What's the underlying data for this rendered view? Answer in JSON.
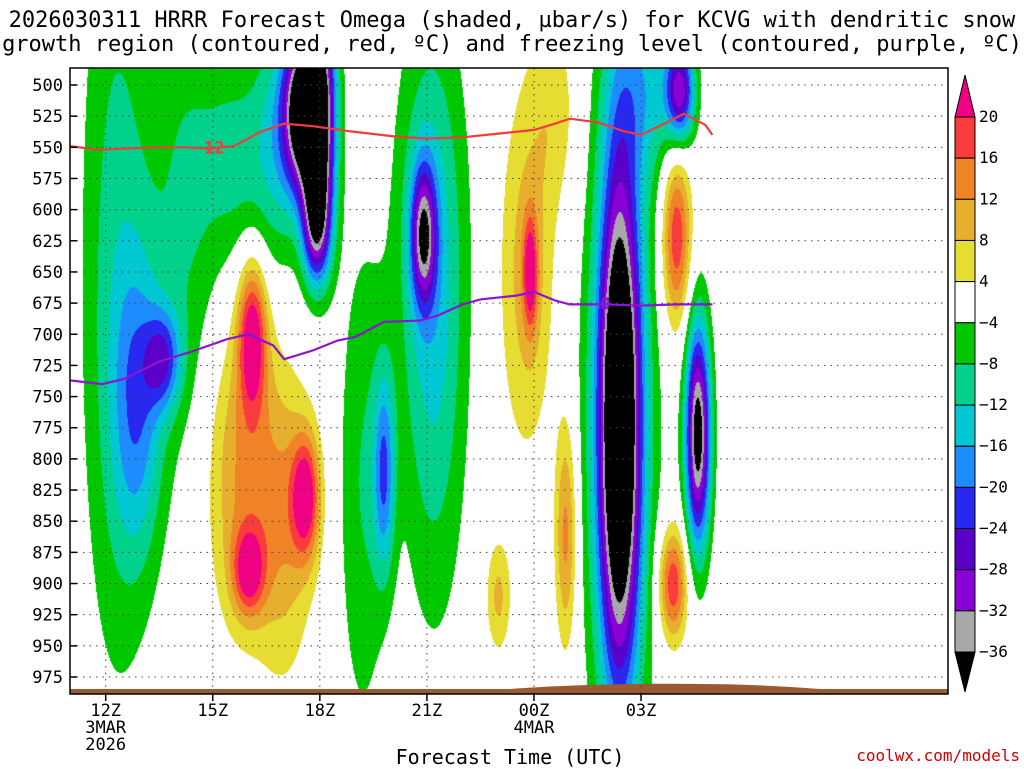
{
  "chart_data": {
    "type": "heatmap",
    "title_line1": "2026030311 HRRR Forecast Omega (shaded, µbar/s) for KCVG with dendritic snow",
    "title_line2": "growth region (contoured, red, ºC) and freezing level (contoured, purple, ºC)",
    "xlabel": "Forecast Time (UTC)",
    "credit": "coolwx.com/models",
    "xlim": [
      11,
      35.6
    ],
    "ylim": [
      990,
      490
    ],
    "yticks": [
      500,
      525,
      550,
      575,
      600,
      625,
      650,
      675,
      700,
      725,
      750,
      775,
      800,
      825,
      850,
      875,
      900,
      925,
      950,
      975
    ],
    "xticks": [
      {
        "t": 12,
        "lines": [
          "12Z",
          "3MAR",
          "2026"
        ]
      },
      {
        "t": 15,
        "lines": [
          "15Z"
        ]
      },
      {
        "t": 18,
        "lines": [
          "18Z"
        ]
      },
      {
        "t": 21,
        "lines": [
          "21Z"
        ]
      },
      {
        "t": 24,
        "lines": [
          "00Z",
          "4MAR"
        ]
      },
      {
        "t": 27,
        "lines": [
          "03Z"
        ]
      }
    ],
    "colorbar": {
      "levels": [
        -36,
        -32,
        -28,
        -24,
        -20,
        -16,
        -12,
        -8,
        -4,
        4,
        8,
        12,
        16,
        20
      ],
      "labels": [
        "20",
        "16",
        "12",
        "8",
        "4",
        "−4",
        "−8",
        "−12",
        "−16",
        "−20",
        "−24",
        "−28",
        "−32",
        "−36"
      ],
      "colors": [
        "#000000",
        "#a8a8a8",
        "#8c00d8",
        "#5a00c8",
        "#2828f0",
        "#1e8cff",
        "#00c8d2",
        "#00d28c",
        "#00c800",
        "#ffffff",
        "#e6dc32",
        "#e6af2d",
        "#f08228",
        "#fa3c3c",
        "#f00082"
      ]
    },
    "omega_cells": [
      {
        "t": 12.3,
        "p": 650,
        "v": -10,
        "sx": 1.0,
        "sy": 320
      },
      {
        "t": 12.9,
        "p": 760,
        "v": -14,
        "sx": 0.7,
        "sy": 120
      },
      {
        "t": 13.6,
        "p": 720,
        "v": -17,
        "sx": 0.5,
        "sy": 40
      },
      {
        "t": 14.2,
        "p": 600,
        "v": -8,
        "sx": 1.0,
        "sy": 200
      },
      {
        "t": 15.7,
        "p": 560,
        "v": -9,
        "sx": 1.0,
        "sy": 90
      },
      {
        "t": 16.9,
        "p": 540,
        "v": -12,
        "sx": 0.7,
        "sy": 100
      },
      {
        "t": 17.5,
        "p": 520,
        "v": -40,
        "sx": 0.5,
        "sy": 60
      },
      {
        "t": 18.0,
        "p": 520,
        "v": -40,
        "sx": 0.45,
        "sy": 90
      },
      {
        "t": 17.9,
        "p": 610,
        "v": -28,
        "sx": 0.4,
        "sy": 50
      },
      {
        "t": 16.1,
        "p": 700,
        "v": 22,
        "sx": 0.4,
        "sy": 60
      },
      {
        "t": 15.8,
        "p": 810,
        "v": 12,
        "sx": 1.0,
        "sy": 120
      },
      {
        "t": 17.6,
        "p": 830,
        "v": 21,
        "sx": 0.4,
        "sy": 50
      },
      {
        "t": 16.0,
        "p": 890,
        "v": 18,
        "sx": 0.45,
        "sy": 35
      },
      {
        "t": 17.0,
        "p": 850,
        "v": 10,
        "sx": 0.8,
        "sy": 120
      },
      {
        "t": 19.2,
        "p": 820,
        "v": -8,
        "sx": 0.7,
        "sy": 200
      },
      {
        "t": 19.8,
        "p": 810,
        "v": -17,
        "sx": 0.3,
        "sy": 80
      },
      {
        "t": 21.1,
        "p": 600,
        "v": -10,
        "sx": 1.0,
        "sy": 180
      },
      {
        "t": 20.9,
        "p": 620,
        "v": -26,
        "sx": 0.35,
        "sy": 55
      },
      {
        "t": 21.2,
        "p": 760,
        "v": -8,
        "sx": 0.9,
        "sy": 200
      },
      {
        "t": 23.8,
        "p": 650,
        "v": 10,
        "sx": 0.75,
        "sy": 140
      },
      {
        "t": 23.9,
        "p": 650,
        "v": 17,
        "sx": 0.2,
        "sy": 45
      },
      {
        "t": 24.6,
        "p": 520,
        "v": 6,
        "sx": 0.7,
        "sy": 80
      },
      {
        "t": 23.0,
        "p": 910,
        "v": 9,
        "sx": 0.35,
        "sy": 45
      },
      {
        "t": 24.9,
        "p": 860,
        "v": 14,
        "sx": 0.3,
        "sy": 90
      },
      {
        "t": 26.4,
        "p": 770,
        "v": -44,
        "sx": 0.55,
        "sy": 200
      },
      {
        "t": 26.4,
        "p": 770,
        "v": -14,
        "sx": 1.0,
        "sy": 250
      },
      {
        "t": 27.1,
        "p": 500,
        "v": -12,
        "sx": 1.0,
        "sy": 80
      },
      {
        "t": 28.1,
        "p": 505,
        "v": -28,
        "sx": 0.4,
        "sy": 40
      },
      {
        "t": 28.6,
        "p": 780,
        "v": -40,
        "sx": 0.35,
        "sy": 90
      },
      {
        "t": 28.0,
        "p": 620,
        "v": 20,
        "sx": 0.4,
        "sy": 70
      },
      {
        "t": 27.9,
        "p": 900,
        "v": 20,
        "sx": 0.4,
        "sy": 45
      }
    ],
    "series": [
      {
        "name": "dendritic growth region -12C",
        "label": "−12",
        "color": "#f03c3c",
        "t": [
          11.0,
          11.8,
          12.5,
          13.5,
          14.2,
          14.9,
          15.6,
          16.3,
          17.0,
          17.8,
          18.8,
          20.0,
          21.0,
          22.0,
          23.0,
          24.0,
          24.6,
          25.0,
          25.8,
          26.5,
          27.0,
          27.8,
          28.2,
          28.8,
          29.0
        ],
        "p": [
          549,
          552,
          551,
          550,
          550,
          551,
          549,
          538,
          531,
          533,
          537,
          541,
          543,
          542,
          539,
          536,
          531,
          527,
          530,
          537,
          540,
          529,
          523,
          532,
          540
        ]
      },
      {
        "name": "freezing level 0C",
        "label": "0",
        "color": "#8c14d2",
        "t": [
          11.0,
          11.9,
          12.5,
          13.5,
          14.5,
          15.4,
          16.0,
          16.7,
          17.0,
          17.8,
          18.5,
          19.0,
          19.8,
          20.8,
          21.3,
          22.0,
          22.5,
          23.5,
          24.0,
          24.6,
          25.0,
          26.0,
          27.0,
          28.0,
          29.0
        ],
        "p": [
          737,
          740,
          736,
          722,
          713,
          704,
          700,
          709,
          720,
          713,
          705,
          702,
          690,
          689,
          685,
          676,
          672,
          669,
          666,
          673,
          676,
          676,
          677,
          676,
          676
        ]
      }
    ]
  }
}
